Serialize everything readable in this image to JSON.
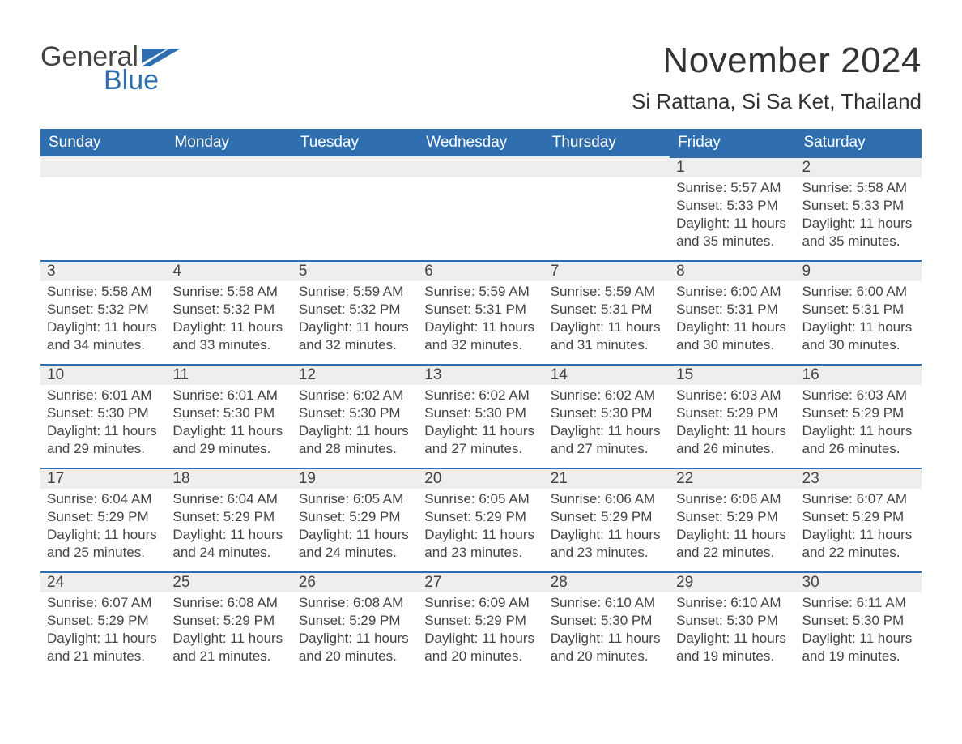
{
  "colors": {
    "header_bg": "#2f6fb0",
    "header_text": "#ffffff",
    "daynum_bg": "#eeeeee",
    "daynum_border": "#2f6fb0",
    "page_bg": "#ffffff",
    "text": "#444444",
    "logo_blue": "#2f6fb0"
  },
  "fonts": {
    "title_size_pt": 44,
    "location_size_pt": 26,
    "header_size_pt": 19,
    "body_size_pt": 17,
    "family": "Arial"
  },
  "logo": {
    "line1": "General",
    "line2": "Blue"
  },
  "title": "November 2024",
  "location": "Si Rattana, Si Sa Ket, Thailand",
  "weekdays": [
    "Sunday",
    "Monday",
    "Tuesday",
    "Wednesday",
    "Thursday",
    "Friday",
    "Saturday"
  ],
  "labels": {
    "sunrise": "Sunrise:",
    "sunset": "Sunset:",
    "daylight": "Daylight:"
  },
  "weeks": [
    [
      null,
      null,
      null,
      null,
      null,
      {
        "n": "1",
        "sunrise": "5:57 AM",
        "sunset": "5:33 PM",
        "daylight": "11 hours and 35 minutes."
      },
      {
        "n": "2",
        "sunrise": "5:58 AM",
        "sunset": "5:33 PM",
        "daylight": "11 hours and 35 minutes."
      }
    ],
    [
      {
        "n": "3",
        "sunrise": "5:58 AM",
        "sunset": "5:32 PM",
        "daylight": "11 hours and 34 minutes."
      },
      {
        "n": "4",
        "sunrise": "5:58 AM",
        "sunset": "5:32 PM",
        "daylight": "11 hours and 33 minutes."
      },
      {
        "n": "5",
        "sunrise": "5:59 AM",
        "sunset": "5:32 PM",
        "daylight": "11 hours and 32 minutes."
      },
      {
        "n": "6",
        "sunrise": "5:59 AM",
        "sunset": "5:31 PM",
        "daylight": "11 hours and 32 minutes."
      },
      {
        "n": "7",
        "sunrise": "5:59 AM",
        "sunset": "5:31 PM",
        "daylight": "11 hours and 31 minutes."
      },
      {
        "n": "8",
        "sunrise": "6:00 AM",
        "sunset": "5:31 PM",
        "daylight": "11 hours and 30 minutes."
      },
      {
        "n": "9",
        "sunrise": "6:00 AM",
        "sunset": "5:31 PM",
        "daylight": "11 hours and 30 minutes."
      }
    ],
    [
      {
        "n": "10",
        "sunrise": "6:01 AM",
        "sunset": "5:30 PM",
        "daylight": "11 hours and 29 minutes."
      },
      {
        "n": "11",
        "sunrise": "6:01 AM",
        "sunset": "5:30 PM",
        "daylight": "11 hours and 29 minutes."
      },
      {
        "n": "12",
        "sunrise": "6:02 AM",
        "sunset": "5:30 PM",
        "daylight": "11 hours and 28 minutes."
      },
      {
        "n": "13",
        "sunrise": "6:02 AM",
        "sunset": "5:30 PM",
        "daylight": "11 hours and 27 minutes."
      },
      {
        "n": "14",
        "sunrise": "6:02 AM",
        "sunset": "5:30 PM",
        "daylight": "11 hours and 27 minutes."
      },
      {
        "n": "15",
        "sunrise": "6:03 AM",
        "sunset": "5:29 PM",
        "daylight": "11 hours and 26 minutes."
      },
      {
        "n": "16",
        "sunrise": "6:03 AM",
        "sunset": "5:29 PM",
        "daylight": "11 hours and 26 minutes."
      }
    ],
    [
      {
        "n": "17",
        "sunrise": "6:04 AM",
        "sunset": "5:29 PM",
        "daylight": "11 hours and 25 minutes."
      },
      {
        "n": "18",
        "sunrise": "6:04 AM",
        "sunset": "5:29 PM",
        "daylight": "11 hours and 24 minutes."
      },
      {
        "n": "19",
        "sunrise": "6:05 AM",
        "sunset": "5:29 PM",
        "daylight": "11 hours and 24 minutes."
      },
      {
        "n": "20",
        "sunrise": "6:05 AM",
        "sunset": "5:29 PM",
        "daylight": "11 hours and 23 minutes."
      },
      {
        "n": "21",
        "sunrise": "6:06 AM",
        "sunset": "5:29 PM",
        "daylight": "11 hours and 23 minutes."
      },
      {
        "n": "22",
        "sunrise": "6:06 AM",
        "sunset": "5:29 PM",
        "daylight": "11 hours and 22 minutes."
      },
      {
        "n": "23",
        "sunrise": "6:07 AM",
        "sunset": "5:29 PM",
        "daylight": "11 hours and 22 minutes."
      }
    ],
    [
      {
        "n": "24",
        "sunrise": "6:07 AM",
        "sunset": "5:29 PM",
        "daylight": "11 hours and 21 minutes."
      },
      {
        "n": "25",
        "sunrise": "6:08 AM",
        "sunset": "5:29 PM",
        "daylight": "11 hours and 21 minutes."
      },
      {
        "n": "26",
        "sunrise": "6:08 AM",
        "sunset": "5:29 PM",
        "daylight": "11 hours and 20 minutes."
      },
      {
        "n": "27",
        "sunrise": "6:09 AM",
        "sunset": "5:29 PM",
        "daylight": "11 hours and 20 minutes."
      },
      {
        "n": "28",
        "sunrise": "6:10 AM",
        "sunset": "5:30 PM",
        "daylight": "11 hours and 20 minutes."
      },
      {
        "n": "29",
        "sunrise": "6:10 AM",
        "sunset": "5:30 PM",
        "daylight": "11 hours and 19 minutes."
      },
      {
        "n": "30",
        "sunrise": "6:11 AM",
        "sunset": "5:30 PM",
        "daylight": "11 hours and 19 minutes."
      }
    ]
  ]
}
